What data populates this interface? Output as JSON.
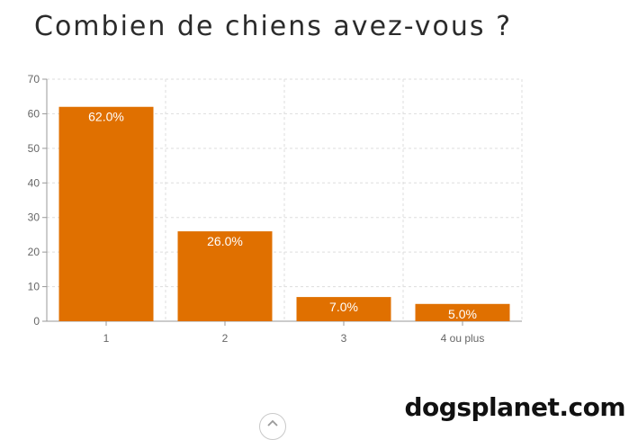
{
  "brand": {
    "logo_text": "dogsplanet.com"
  },
  "chart_data": {
    "type": "bar",
    "title": "Combien de chiens avez-vous ?",
    "xlabel": "",
    "ylabel": "",
    "categories": [
      "1",
      "2",
      "3",
      "4 ou plus"
    ],
    "values": [
      62,
      26,
      7,
      5
    ],
    "data_labels": [
      "62.0%",
      "26.0%",
      "7.0%",
      "5.0%"
    ],
    "ylim": [
      0,
      70
    ],
    "yticks": [
      "0",
      "10",
      "20",
      "30",
      "40",
      "50",
      "60",
      "70"
    ],
    "grid": true,
    "legend": "none",
    "bar_color": "#e07000",
    "data_label_color": "#ffffff"
  },
  "scroll_up": {
    "icon": "chevron-up-icon"
  }
}
